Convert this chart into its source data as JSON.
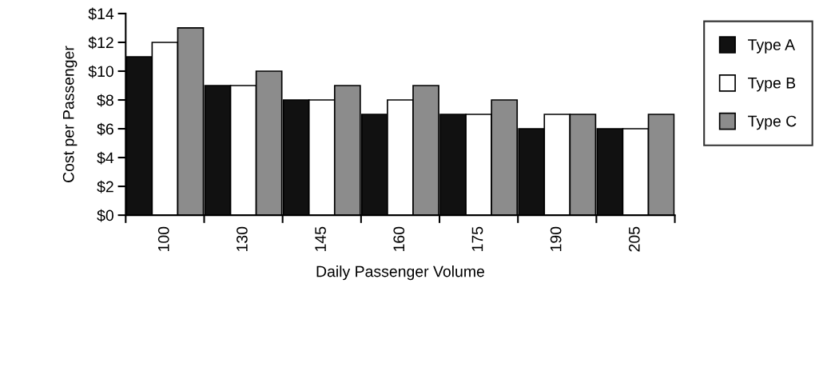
{
  "chart_data": {
    "type": "bar",
    "xlabel": "Daily Passenger Volume",
    "ylabel": "Cost per Passenger",
    "categories": [
      "100",
      "130",
      "145",
      "160",
      "175",
      "190",
      "205"
    ],
    "series": [
      {
        "name": "Type A",
        "color": "#111111",
        "values": [
          11,
          9,
          8,
          7,
          7,
          6,
          6
        ]
      },
      {
        "name": "Type B",
        "color": "#ffffff",
        "values": [
          12,
          9,
          8,
          8,
          7,
          7,
          6
        ]
      },
      {
        "name": "Type C",
        "color": "#8c8c8c",
        "values": [
          13,
          10,
          9,
          9,
          8,
          7,
          7
        ]
      }
    ],
    "ylim": [
      0,
      14
    ],
    "yticks": [
      {
        "value": 0,
        "label": "$0"
      },
      {
        "value": 2,
        "label": "$2"
      },
      {
        "value": 4,
        "label": "$4"
      },
      {
        "value": 6,
        "label": "$6"
      },
      {
        "value": 8,
        "label": "$8"
      },
      {
        "value": 10,
        "label": "$10"
      },
      {
        "value": 12,
        "label": "$12"
      },
      {
        "value": 14,
        "label": "$14"
      }
    ],
    "grid": false,
    "legend": "right"
  }
}
